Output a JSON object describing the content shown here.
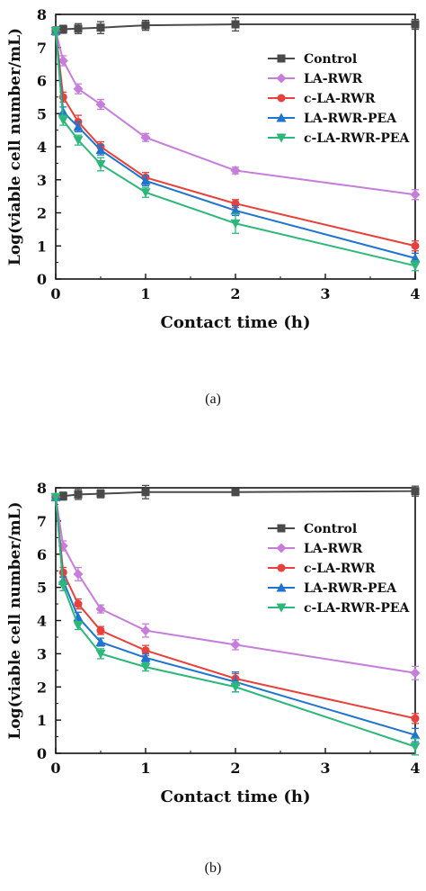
{
  "chart_data": [
    {
      "type": "line",
      "panel": "a",
      "caption": "(a)",
      "xlabel": "Contact time (h)",
      "ylabel": "Log(viable cell number/mL)",
      "xlim": [
        0,
        4
      ],
      "ylim": [
        0,
        8
      ],
      "xticks": [
        0,
        1,
        2,
        3,
        4
      ],
      "yticks": [
        0,
        1,
        2,
        3,
        4,
        5,
        6,
        7,
        8
      ],
      "x": [
        0,
        0.083,
        0.25,
        0.5,
        1,
        2,
        4
      ],
      "legend_position": "top-right",
      "series": [
        {
          "name": "Control",
          "color": "#4a4a4a",
          "marker": "square",
          "values": [
            7.5,
            7.55,
            7.57,
            7.6,
            7.67,
            7.7,
            7.7
          ],
          "errors": [
            0.12,
            0.12,
            0.15,
            0.18,
            0.15,
            0.2,
            0.15
          ]
        },
        {
          "name": "LA-RWR",
          "color": "#c77ddc",
          "marker": "diamond",
          "values": [
            7.5,
            6.6,
            5.75,
            5.28,
            4.28,
            3.28,
            2.55
          ],
          "errors": [
            0.1,
            0.15,
            0.15,
            0.15,
            0.12,
            0.1,
            0.15
          ]
        },
        {
          "name": "c-LA-RWR",
          "color": "#e8403a",
          "marker": "circle",
          "values": [
            7.5,
            5.5,
            4.75,
            4.0,
            3.07,
            2.28,
            1.0
          ],
          "errors": [
            0.1,
            0.15,
            0.2,
            0.15,
            0.15,
            0.12,
            0.15
          ]
        },
        {
          "name": "LA-RWR-PEA",
          "color": "#1f74d0",
          "marker": "triangle-up",
          "values": [
            7.5,
            5.05,
            4.6,
            3.9,
            2.97,
            2.07,
            0.63
          ],
          "errors": [
            0.1,
            0.15,
            0.15,
            0.15,
            0.15,
            0.15,
            0.15
          ]
        },
        {
          "name": "c-LA-RWR-PEA",
          "color": "#2cb87a",
          "marker": "triangle-down",
          "values": [
            7.5,
            4.8,
            4.2,
            3.47,
            2.62,
            1.68,
            0.4
          ],
          "errors": [
            0.1,
            0.15,
            0.15,
            0.2,
            0.15,
            0.3,
            0.15
          ]
        }
      ]
    },
    {
      "type": "line",
      "panel": "b",
      "caption": "(b)",
      "xlabel": "Contact time (h)",
      "ylabel": "Log(viable cell number/mL)",
      "xlim": [
        0,
        4
      ],
      "ylim": [
        0,
        8
      ],
      "xticks": [
        0,
        1,
        2,
        3,
        4
      ],
      "yticks": [
        0,
        1,
        2,
        3,
        4,
        5,
        6,
        7,
        8
      ],
      "x": [
        0,
        0.083,
        0.25,
        0.5,
        1,
        2,
        4
      ],
      "legend_position": "top-right",
      "series": [
        {
          "name": "Control",
          "color": "#4a4a4a",
          "marker": "square",
          "values": [
            7.72,
            7.75,
            7.8,
            7.82,
            7.87,
            7.87,
            7.9
          ],
          "errors": [
            0.1,
            0.12,
            0.15,
            0.12,
            0.2,
            0.1,
            0.15
          ]
        },
        {
          "name": "LA-RWR",
          "color": "#c77ddc",
          "marker": "diamond",
          "values": [
            7.72,
            6.25,
            5.4,
            4.35,
            3.7,
            3.27,
            2.42
          ],
          "errors": [
            0.1,
            0.15,
            0.2,
            0.12,
            0.2,
            0.15,
            0.2
          ]
        },
        {
          "name": "c-LA-RWR",
          "color": "#e8403a",
          "marker": "circle",
          "values": [
            7.72,
            5.45,
            4.5,
            3.7,
            3.1,
            2.25,
            1.05
          ],
          "errors": [
            0.1,
            0.15,
            0.15,
            0.12,
            0.15,
            0.15,
            0.15
          ]
        },
        {
          "name": "LA-RWR-PEA",
          "color": "#1f74d0",
          "marker": "triangle-up",
          "values": [
            7.72,
            5.2,
            4.1,
            3.35,
            2.88,
            2.15,
            0.55
          ],
          "errors": [
            0.1,
            0.12,
            0.15,
            0.12,
            0.12,
            0.3,
            0.2
          ]
        },
        {
          "name": "c-LA-RWR-PEA",
          "color": "#2cb87a",
          "marker": "triangle-down",
          "values": [
            7.72,
            5.05,
            3.85,
            3.0,
            2.6,
            2.0,
            0.2
          ],
          "errors": [
            0.1,
            0.15,
            0.12,
            0.15,
            0.12,
            0.15,
            0.25
          ]
        }
      ]
    }
  ]
}
